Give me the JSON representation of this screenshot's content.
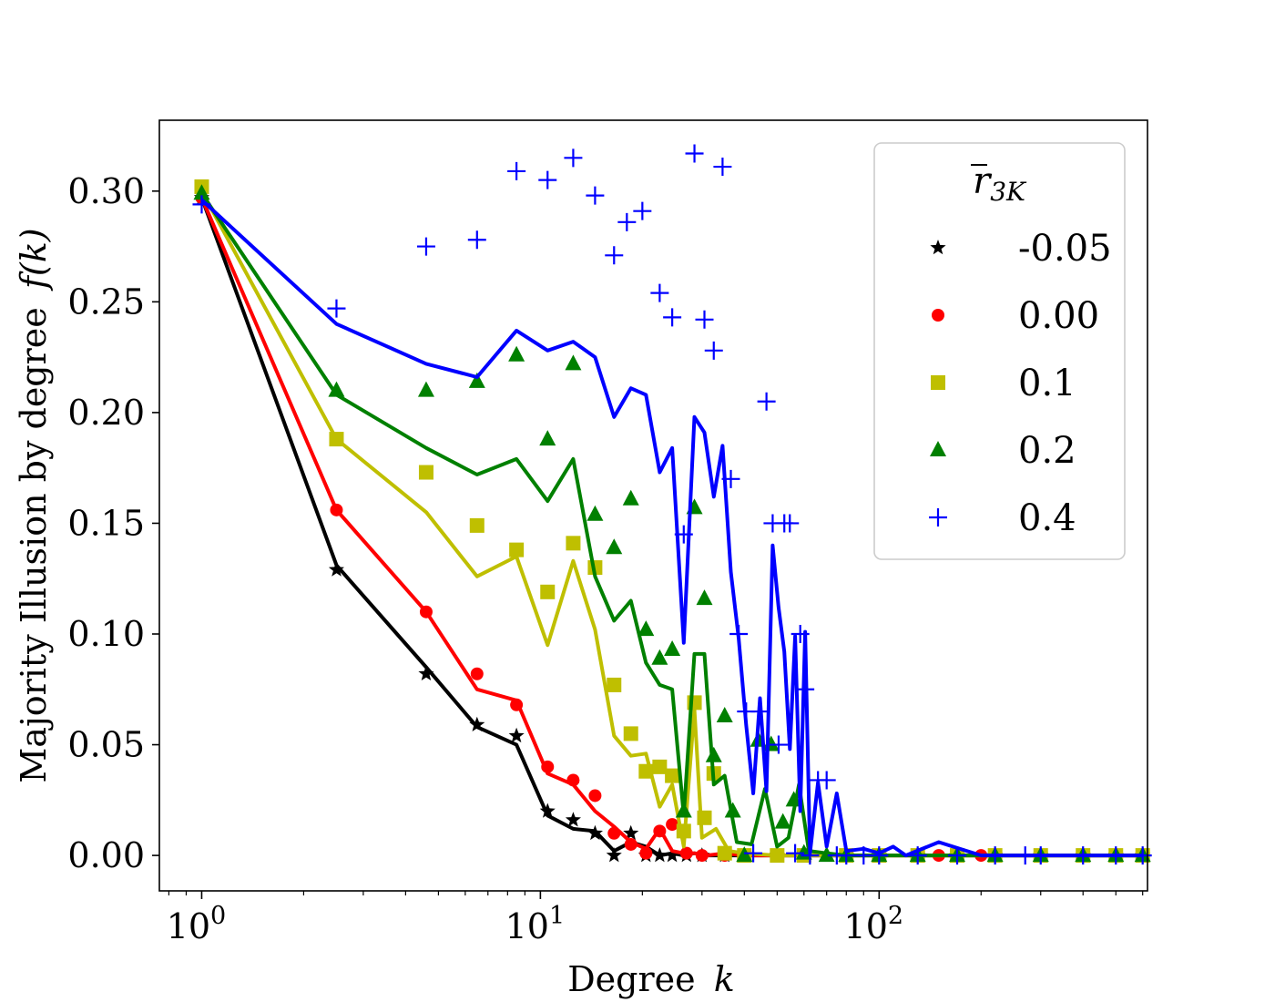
{
  "chart_data": {
    "type": "line",
    "title": "",
    "xlabel": "Degree",
    "xlabel_var": "k",
    "ylabel": "Majority Illusion by degree",
    "ylabel_var": "f(k)",
    "xscale": "log",
    "xlim": [
      0.75,
      620
    ],
    "ylim": [
      -0.016,
      0.332
    ],
    "yticks": [
      0.0,
      0.05,
      0.1,
      0.15,
      0.2,
      0.25,
      0.3
    ],
    "ytick_labels": [
      "0.00",
      "0.05",
      "0.10",
      "0.15",
      "0.20",
      "0.25",
      "0.30"
    ],
    "xtick_labels": [
      {
        "base": "10",
        "exp": "0",
        "value": 1
      },
      {
        "base": "10",
        "exp": "1",
        "value": 10
      },
      {
        "base": "10",
        "exp": "2",
        "value": 100
      }
    ],
    "grid": false,
    "legend": {
      "title_symbol": "r",
      "title_subscript": "3K",
      "position": "top-right"
    },
    "series": [
      {
        "name": "-0.05",
        "color": "#000000",
        "marker": "star",
        "line_x": [
          1,
          2.5,
          4.6,
          6.5,
          8.5,
          10.5,
          12.5,
          14.5,
          16.5,
          18.5,
          20.5,
          22.5,
          24.5,
          26.5,
          28.5,
          31,
          35,
          40,
          50,
          60,
          80,
          100,
          150,
          200,
          300,
          400,
          500,
          600
        ],
        "line_y": [
          0.297,
          0.131,
          0.085,
          0.058,
          0.05,
          0.018,
          0.012,
          0.011,
          0.002,
          0.006,
          0.004,
          0.0,
          0.001,
          0.0,
          0.001,
          0.0,
          0.0,
          0.0,
          0.0,
          0.0,
          0.0,
          0.0,
          0.0,
          0.0,
          0.0,
          0.0,
          0.0,
          0.0
        ],
        "points_x": [
          1,
          2.5,
          4.6,
          6.5,
          8.5,
          10.5,
          12.5,
          14.5,
          16.5,
          18.5,
          20.5,
          22.5,
          24.5,
          27,
          30,
          35,
          40,
          50,
          60,
          80,
          100,
          130,
          170,
          220,
          300,
          400,
          500,
          600
        ],
        "points_y": [
          0.297,
          0.129,
          0.082,
          0.059,
          0.054,
          0.02,
          0.016,
          0.01,
          0.0,
          0.01,
          0.0,
          0.0,
          0.0,
          0.0,
          0.0,
          0.0,
          0.0,
          0.0,
          0.0,
          0.0,
          0.0,
          0.0,
          0.0,
          0.0,
          0.0,
          0.0,
          0.0,
          0.0
        ]
      },
      {
        "name": "0.00",
        "color": "#ff0000",
        "marker": "circle",
        "line_x": [
          1,
          2.5,
          4.6,
          6.5,
          8.5,
          10.5,
          12.5,
          14.5,
          16.5,
          18.5,
          20.5,
          22.5,
          24.5,
          26.5,
          28.5,
          31,
          35,
          40,
          50,
          60,
          80,
          100,
          150,
          200,
          300,
          400,
          500,
          600
        ],
        "line_y": [
          0.297,
          0.156,
          0.11,
          0.075,
          0.07,
          0.037,
          0.032,
          0.02,
          0.013,
          0.006,
          0.003,
          0.012,
          0.002,
          0.001,
          0.001,
          0.0,
          0.001,
          0.0,
          0.0,
          0.0,
          0.0,
          0.0,
          0.0,
          0.0,
          0.0,
          0.0,
          0.0,
          0.0
        ],
        "points_x": [
          1,
          2.5,
          4.6,
          6.5,
          8.5,
          10.5,
          12.5,
          14.5,
          16.5,
          18.5,
          20.5,
          22.5,
          24.5,
          27,
          30,
          35,
          40,
          50,
          60,
          80,
          100,
          150,
          200,
          300,
          400,
          500,
          600
        ],
        "points_y": [
          0.297,
          0.156,
          0.11,
          0.082,
          0.068,
          0.04,
          0.034,
          0.027,
          0.01,
          0.005,
          0.001,
          0.011,
          0.014,
          0.001,
          0.0,
          0.0,
          0.0,
          0.0,
          0.0,
          0.0,
          0.0,
          0.0,
          0.0,
          0.0,
          0.0,
          0.0,
          0.0
        ]
      },
      {
        "name": "0.1",
        "color": "#bfbf00",
        "marker": "square",
        "line_x": [
          1,
          2.5,
          4.6,
          6.5,
          8.5,
          10.5,
          12.5,
          14.5,
          16.5,
          18.5,
          20.5,
          22.5,
          24.5,
          26.5,
          28.5,
          30,
          33,
          36,
          40,
          50,
          60,
          80,
          100,
          150,
          200,
          300,
          400,
          500,
          600
        ],
        "line_y": [
          0.3,
          0.188,
          0.155,
          0.126,
          0.135,
          0.095,
          0.133,
          0.102,
          0.054,
          0.045,
          0.046,
          0.022,
          0.032,
          0.004,
          0.066,
          0.008,
          0.012,
          0.002,
          0.001,
          0.0,
          0.0,
          0.0,
          0.0,
          0.0,
          0.0,
          0.0,
          0.0,
          0.0,
          0.0
        ],
        "points_x": [
          1,
          2.5,
          4.6,
          6.5,
          8.5,
          10.5,
          12.5,
          14.5,
          16.5,
          18.5,
          20.5,
          22.5,
          24.5,
          26.5,
          28.5,
          30.5,
          32.5,
          35,
          40,
          50,
          60,
          80,
          100,
          130,
          170,
          220,
          300,
          400,
          500,
          600
        ],
        "points_y": [
          0.302,
          0.188,
          0.173,
          0.149,
          0.138,
          0.119,
          0.141,
          0.13,
          0.077,
          0.055,
          0.038,
          0.04,
          0.036,
          0.011,
          0.069,
          0.017,
          0.037,
          0.001,
          0.0,
          0.0,
          0.0,
          0.0,
          0.0,
          0.0,
          0.0,
          0.0,
          0.0,
          0.0,
          0.0,
          0.0
        ]
      },
      {
        "name": "0.2",
        "color": "#008000",
        "marker": "triangle",
        "line_x": [
          1,
          2.5,
          4.6,
          6.5,
          8.5,
          10.5,
          12.5,
          14.5,
          16.5,
          18.5,
          20.5,
          22.5,
          24.5,
          26.5,
          28.5,
          30.5,
          32.5,
          35,
          38,
          42,
          46,
          50,
          54,
          58,
          62,
          70,
          80,
          100,
          150,
          200,
          300,
          400,
          500,
          600
        ],
        "line_y": [
          0.299,
          0.208,
          0.184,
          0.172,
          0.179,
          0.16,
          0.179,
          0.126,
          0.106,
          0.115,
          0.087,
          0.077,
          0.075,
          0.018,
          0.091,
          0.091,
          0.032,
          0.036,
          0.006,
          0.005,
          0.03,
          0.004,
          0.008,
          0.032,
          0.002,
          0.001,
          0.0,
          0.0,
          0.0,
          0.0,
          0.0,
          0.0,
          0.0,
          0.0
        ],
        "points_x": [
          1,
          2.5,
          4.6,
          6.5,
          8.5,
          10.5,
          12.5,
          14.5,
          16.5,
          18.5,
          20.5,
          22.5,
          24.5,
          26.5,
          28.5,
          30.5,
          32.5,
          35,
          37,
          40,
          44,
          48,
          52,
          56,
          60,
          70,
          80,
          100,
          130,
          170,
          220,
          300,
          400,
          500,
          600
        ],
        "points_y": [
          0.299,
          0.21,
          0.21,
          0.214,
          0.226,
          0.188,
          0.222,
          0.154,
          0.139,
          0.161,
          0.102,
          0.089,
          0.093,
          0.02,
          0.157,
          0.116,
          0.045,
          0.063,
          0.02,
          0.0,
          0.052,
          0.05,
          0.015,
          0.025,
          0.001,
          0.0,
          0.0,
          0.0,
          0.0,
          0.0,
          0.0,
          0.0,
          0.0,
          0.0,
          0.0
        ]
      },
      {
        "name": "0.4",
        "color": "#0000ff",
        "marker": "plus",
        "line_x": [
          1,
          2.5,
          4.6,
          6.5,
          8.5,
          10.5,
          12.5,
          14.5,
          16.5,
          18.5,
          20.5,
          22.5,
          24.5,
          26.5,
          28.5,
          30.5,
          32.5,
          34.5,
          36.5,
          38.5,
          40.5,
          42.5,
          44.5,
          46.5,
          48.5,
          50.5,
          52.5,
          54.5,
          56.5,
          58.5,
          60.5,
          62.5,
          66,
          70,
          75,
          80,
          90,
          100,
          110,
          120,
          150,
          200,
          300,
          400,
          500,
          600
        ],
        "line_y": [
          0.296,
          0.24,
          0.222,
          0.216,
          0.237,
          0.228,
          0.232,
          0.225,
          0.198,
          0.211,
          0.208,
          0.173,
          0.184,
          0.096,
          0.198,
          0.191,
          0.162,
          0.185,
          0.128,
          0.098,
          0.059,
          0.028,
          0.071,
          0.029,
          0.14,
          0.112,
          0.092,
          0.048,
          0.099,
          0.02,
          0.101,
          0.001,
          0.033,
          0.004,
          0.028,
          0.002,
          0.003,
          0.001,
          0.004,
          0.0,
          0.006,
          0.0,
          0.0,
          0.0,
          0.0,
          0.0
        ],
        "points_x": [
          1,
          2.5,
          4.6,
          6.5,
          8.5,
          10.5,
          12.5,
          14.5,
          16.5,
          18.0,
          20.0,
          22.5,
          24.5,
          26.5,
          28.5,
          30.5,
          32.5,
          34.5,
          36.5,
          38.5,
          40.5,
          42.5,
          44.5,
          46.5,
          48.5,
          50.5,
          52.5,
          54.5,
          56.5,
          58.5,
          60.5,
          62.5,
          66,
          70,
          75,
          80,
          90,
          100,
          130,
          170,
          220,
          270,
          300,
          400,
          500,
          600
        ],
        "points_y": [
          0.294,
          0.247,
          0.275,
          0.278,
          0.309,
          0.305,
          0.315,
          0.298,
          0.271,
          0.286,
          0.291,
          0.254,
          0.243,
          0.145,
          0.317,
          0.242,
          0.228,
          0.311,
          0.17,
          0.1,
          0.065,
          0.001,
          0.065,
          0.205,
          0.15,
          0.05,
          0.15,
          0.15,
          0.001,
          0.1,
          0.075,
          0.0,
          0.034,
          0.034,
          0.0,
          0.0,
          0.0,
          0.0,
          0.0,
          0.0,
          0.0,
          0.0,
          0.0,
          0.0,
          0.0,
          0.0
        ]
      }
    ]
  }
}
